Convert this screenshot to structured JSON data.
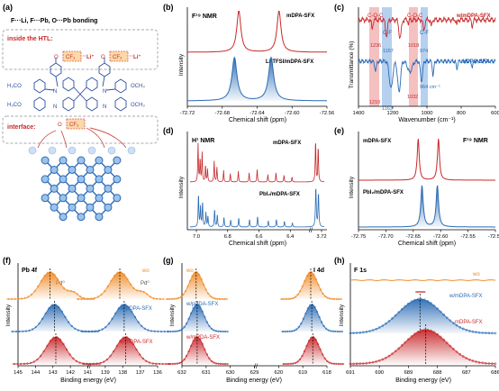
{
  "panels": {
    "a": "(a)",
    "b": "(b)",
    "c": "(c)",
    "d": "(d)",
    "e": "(e)",
    "f": "(f)",
    "g": "(g)",
    "h": "(h)"
  },
  "colors": {
    "red": "#c8282a",
    "red_fill": "#e8a0a0",
    "blue": "#2a6bb5",
    "blue_fill": "#8fb6e3",
    "orange": "#f08c28",
    "orange_fill": "#f7c88c",
    "band_red": "#f2b5b5",
    "band_blue": "#a9c8ec",
    "dark_blue": "#2d4f9e",
    "dash_box": "#aaaaaa"
  },
  "schematic": {
    "title": "F···Li, F···Pb, O···Pb bonding",
    "inside_label": "inside the HTL:",
    "interface_label": "interface:",
    "o_label": "O",
    "cf3_label": "CF₃",
    "li_label": "Li⁺",
    "n_label": "N",
    "ome_left": "H₃CO",
    "ome_right": "OCH₃"
  },
  "chart_data": [
    {
      "panel": "b",
      "type": "line",
      "title": "F¹⁹ NMR",
      "xlabel": "Chemical shift (ppm)",
      "ylabel": "Intensity",
      "xlim": [
        -72.72,
        -72.56
      ],
      "x_reversed": true,
      "x_ticks": [
        "-72.72",
        "-72.68",
        "-72.64",
        "-72.60",
        "-72.56"
      ],
      "series": [
        {
          "name": "mDPA-SFX",
          "peaks": [
            -72.661,
            -72.615
          ]
        },
        {
          "name": "Li-TFSI/mDPA-SFX",
          "peaks": [
            -72.666,
            -72.624
          ]
        }
      ]
    },
    {
      "panel": "c",
      "type": "line",
      "xlabel": "Wavenumber (cm⁻¹)",
      "ylabel": "Transmittance (%)",
      "xlim": [
        1400,
        600
      ],
      "x_reversed": true,
      "x_ticks": [
        "1400",
        "1200",
        "1000",
        "800",
        "600"
      ],
      "series": [
        {
          "name": "w/mDPA-SFX",
          "marked_peaks": [
            1236,
            1157,
            1018,
            974
          ]
        },
        {
          "name": "mDPA-SFX",
          "marked_peaks": [
            1210,
            1163,
            1032,
            964
          ]
        }
      ],
      "annotations": [
        "C-O-C",
        "C-F",
        "C-O-C",
        "C-F"
      ],
      "peak_labels": {
        "w_top": [
          "1236",
          "1157",
          "1018",
          "974"
        ],
        "m_bottom": [
          "1210",
          "1163",
          "1032",
          "964 cm⁻¹"
        ]
      }
    },
    {
      "panel": "d",
      "type": "line",
      "title": "H¹ NMR",
      "xlabel": "Chemical shift (ppm)",
      "ylabel": "Intensity",
      "x_ticks": [
        "7.0",
        "6.8",
        "6.6",
        "6.4",
        "3.72"
      ],
      "series": [
        {
          "name": "mDPA-SFX"
        },
        {
          "name": "PbI₂/mDPA-SFX"
        }
      ]
    },
    {
      "panel": "e",
      "type": "line",
      "title": "F¹⁹ NMR",
      "xlabel": "Chemical shift (ppm)",
      "ylabel": "Intensity",
      "xlim": [
        -72.75,
        -72.5
      ],
      "x_reversed": true,
      "x_ticks": [
        "-72.75",
        "-72.70",
        "-72.65",
        "-72.60",
        "-72.55",
        "-72.50"
      ],
      "series": [
        {
          "name": "mDPA-SFX",
          "peaks": [
            -72.641,
            -72.604
          ]
        },
        {
          "name": "PbI₂/mDPA-SFX",
          "peaks": [
            -72.634,
            -72.606
          ]
        }
      ]
    },
    {
      "panel": "f",
      "type": "area",
      "title": "Pb 4f",
      "xlabel": "Binding energy (eV)",
      "ylabel": "Intensity",
      "x_ticks": [
        "145",
        "144",
        "143",
        "142",
        "141",
        "139",
        "138",
        "137",
        "136"
      ],
      "series": [
        {
          "name": "wo",
          "peaks": [
            143.0,
            138.2
          ]
        },
        {
          "name": "w/pDPA-SFX",
          "peaks": [
            142.7,
            137.9
          ]
        },
        {
          "name": "w/mDPA-SFX",
          "peaks": [
            142.6,
            137.8
          ]
        }
      ],
      "annotations": [
        "Pd⁰",
        "Pd⁰"
      ]
    },
    {
      "panel": "g",
      "type": "area",
      "title": "I 4d",
      "xlabel": "Binding energy (eV)",
      "ylabel": "Intensity",
      "x_ticks": [
        "632",
        "631",
        "630",
        "629",
        "620",
        "619",
        "618"
      ],
      "series": [
        {
          "name": "wo",
          "peaks": [
            630.7,
            619.4
          ]
        },
        {
          "name": "w/pPDA-SFX",
          "peaks": [
            630.6,
            619.3
          ]
        },
        {
          "name": "w/mPDA-SFX",
          "peaks": [
            630.6,
            619.2
          ]
        }
      ]
    },
    {
      "panel": "h",
      "type": "scatter",
      "title": "F 1s",
      "xlabel": "Binding energy (eV)",
      "ylabel": "Intensity",
      "xlim": [
        691,
        686
      ],
      "x_reversed": true,
      "x_ticks": [
        "691",
        "690",
        "689",
        "688",
        "687",
        "686"
      ],
      "series": [
        {
          "name": "wo"
        },
        {
          "name": "w/mDPA-SFX",
          "peaks": [
            688.6
          ]
        },
        {
          "name": "mDPA-SFX",
          "peaks": [
            688.4
          ]
        }
      ]
    }
  ]
}
